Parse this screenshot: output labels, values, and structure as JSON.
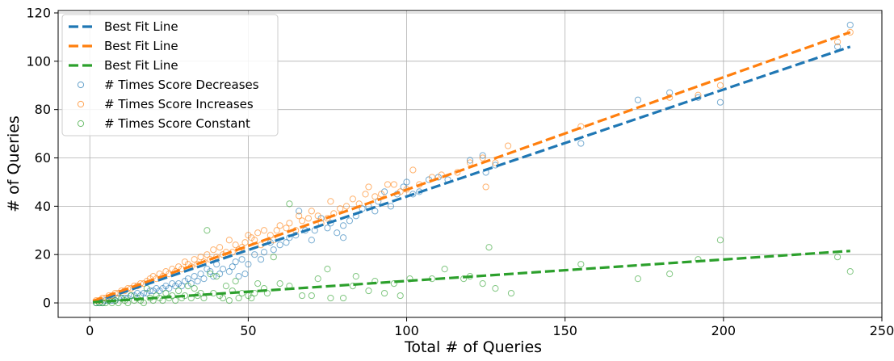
{
  "chart_data": {
    "type": "scatter",
    "title": "",
    "xlabel": "Total # of Queries",
    "ylabel": "# of Queries",
    "xlim": [
      -10,
      250
    ],
    "ylim": [
      -6,
      121
    ],
    "xticks": [
      0,
      50,
      100,
      150,
      200,
      250
    ],
    "yticks": [
      0,
      20,
      40,
      60,
      80,
      100,
      120
    ],
    "grid": true,
    "legend": {
      "location": "top-left",
      "entries": [
        {
          "label": "Best Fit Line",
          "kind": "line",
          "color": "#1f77b4"
        },
        {
          "label": "Best Fit Line",
          "kind": "line",
          "color": "#ff7f0e"
        },
        {
          "label": "Best Fit Line",
          "kind": "line",
          "color": "#2ca02c"
        },
        {
          "label": "# Times Score Decreases",
          "kind": "marker",
          "color": "#1f77b4"
        },
        {
          "label": "# Times Score Increases",
          "kind": "marker",
          "color": "#ff7f0e"
        },
        {
          "label": "# Times Score Constant",
          "kind": "marker",
          "color": "#2ca02c"
        }
      ]
    },
    "fit_lines": [
      {
        "name": "Best Fit Line (Decreases)",
        "color": "#1f77b4",
        "x": [
          1,
          240
        ],
        "y": [
          0.2,
          106
        ]
      },
      {
        "name": "Best Fit Line (Increases)",
        "color": "#ff7f0e",
        "x": [
          1,
          240
        ],
        "y": [
          0.8,
          112
        ]
      },
      {
        "name": "Best Fit Line (Constant)",
        "color": "#2ca02c",
        "x": [
          1,
          240
        ],
        "y": [
          0.3,
          21.5
        ]
      }
    ],
    "series": [
      {
        "name": "# Times Score Decreases",
        "color": "#1f77b4",
        "points": [
          [
            240,
            115
          ],
          [
            236,
            106
          ],
          [
            199,
            83
          ],
          [
            192,
            85
          ],
          [
            183,
            87
          ],
          [
            173,
            84
          ],
          [
            155,
            66
          ],
          [
            128,
            57
          ],
          [
            125,
            54
          ],
          [
            124,
            61
          ],
          [
            120,
            59
          ],
          [
            113,
            51
          ],
          [
            110,
            52
          ],
          [
            107,
            51
          ],
          [
            104,
            46
          ],
          [
            102,
            45
          ],
          [
            100,
            50
          ],
          [
            99,
            48
          ],
          [
            97,
            45
          ],
          [
            95,
            40
          ],
          [
            93,
            46
          ],
          [
            91,
            42
          ],
          [
            90,
            38
          ],
          [
            88,
            40
          ],
          [
            86,
            39
          ],
          [
            84,
            36
          ],
          [
            82,
            34
          ],
          [
            80,
            32
          ],
          [
            80,
            27
          ],
          [
            78,
            29
          ],
          [
            76,
            33
          ],
          [
            75,
            31
          ],
          [
            73,
            35
          ],
          [
            71,
            30
          ],
          [
            70,
            26
          ],
          [
            68,
            30
          ],
          [
            66,
            38
          ],
          [
            65,
            28
          ],
          [
            63,
            27
          ],
          [
            62,
            25
          ],
          [
            60,
            24
          ],
          [
            58,
            22
          ],
          [
            57,
            25
          ],
          [
            55,
            21
          ],
          [
            54,
            18
          ],
          [
            52,
            20
          ],
          [
            50,
            16
          ],
          [
            49,
            12
          ],
          [
            48,
            18
          ],
          [
            47,
            11
          ],
          [
            46,
            17
          ],
          [
            45,
            15
          ],
          [
            44,
            13
          ],
          [
            42,
            14
          ],
          [
            41,
            12
          ],
          [
            40,
            16
          ],
          [
            39,
            11
          ],
          [
            38,
            13
          ],
          [
            37,
            14
          ],
          [
            36,
            10
          ],
          [
            35,
            12
          ],
          [
            34,
            9
          ],
          [
            33,
            11
          ],
          [
            32,
            8
          ],
          [
            31,
            10
          ],
          [
            30,
            9
          ],
          [
            29,
            7
          ],
          [
            28,
            8
          ],
          [
            27,
            7
          ],
          [
            26,
            8
          ],
          [
            25,
            6
          ],
          [
            24,
            7
          ],
          [
            23,
            6
          ],
          [
            22,
            5
          ],
          [
            21,
            6
          ],
          [
            20,
            5
          ],
          [
            19,
            5
          ],
          [
            18,
            4
          ],
          [
            17,
            4
          ],
          [
            16,
            3
          ],
          [
            15,
            4
          ],
          [
            14,
            3
          ],
          [
            13,
            3
          ],
          [
            12,
            2
          ],
          [
            11,
            2
          ],
          [
            10,
            2
          ],
          [
            9,
            2
          ],
          [
            8,
            1
          ],
          [
            7,
            1
          ],
          [
            6,
            1
          ],
          [
            5,
            1
          ],
          [
            4,
            0
          ],
          [
            3,
            0
          ],
          [
            2,
            0
          ]
        ]
      },
      {
        "name": "# Times Score Increases",
        "color": "#ff7f0e",
        "points": [
          [
            240,
            112
          ],
          [
            236,
            108
          ],
          [
            199,
            90
          ],
          [
            192,
            86
          ],
          [
            183,
            85
          ],
          [
            155,
            73
          ],
          [
            132,
            65
          ],
          [
            128,
            58
          ],
          [
            125,
            48
          ],
          [
            124,
            60
          ],
          [
            120,
            58
          ],
          [
            116,
            54
          ],
          [
            111,
            53
          ],
          [
            108,
            52
          ],
          [
            104,
            49
          ],
          [
            102,
            55
          ],
          [
            100,
            47
          ],
          [
            98,
            46
          ],
          [
            96,
            49
          ],
          [
            94,
            49
          ],
          [
            92,
            45
          ],
          [
            90,
            44
          ],
          [
            88,
            48
          ],
          [
            87,
            45
          ],
          [
            85,
            41
          ],
          [
            83,
            43
          ],
          [
            81,
            40
          ],
          [
            79,
            39
          ],
          [
            77,
            37
          ],
          [
            76,
            42
          ],
          [
            75,
            35
          ],
          [
            73,
            33
          ],
          [
            72,
            36
          ],
          [
            70,
            38
          ],
          [
            69,
            35
          ],
          [
            67,
            34
          ],
          [
            66,
            36
          ],
          [
            65,
            30
          ],
          [
            63,
            33
          ],
          [
            62,
            31
          ],
          [
            60,
            32
          ],
          [
            59,
            30
          ],
          [
            58,
            26
          ],
          [
            57,
            28
          ],
          [
            55,
            30
          ],
          [
            54,
            24
          ],
          [
            53,
            29
          ],
          [
            52,
            26
          ],
          [
            51,
            27
          ],
          [
            50,
            28
          ],
          [
            49,
            25
          ],
          [
            48,
            23
          ],
          [
            47,
            22
          ],
          [
            46,
            24
          ],
          [
            45,
            21
          ],
          [
            44,
            26
          ],
          [
            43,
            21
          ],
          [
            42,
            20
          ],
          [
            41,
            23
          ],
          [
            40,
            19
          ],
          [
            39,
            22
          ],
          [
            38,
            18
          ],
          [
            37,
            20
          ],
          [
            36,
            17
          ],
          [
            35,
            19
          ],
          [
            34,
            16
          ],
          [
            33,
            18
          ],
          [
            32,
            15
          ],
          [
            31,
            16
          ],
          [
            30,
            17
          ],
          [
            29,
            14
          ],
          [
            28,
            15
          ],
          [
            27,
            13
          ],
          [
            26,
            14
          ],
          [
            25,
            12
          ],
          [
            24,
            13
          ],
          [
            23,
            11
          ],
          [
            22,
            12
          ],
          [
            21,
            10
          ],
          [
            20,
            11
          ],
          [
            19,
            10
          ],
          [
            18,
            9
          ],
          [
            17,
            8
          ],
          [
            16,
            8
          ],
          [
            15,
            7
          ],
          [
            14,
            7
          ],
          [
            13,
            6
          ],
          [
            12,
            6
          ],
          [
            11,
            5
          ],
          [
            10,
            5
          ],
          [
            9,
            4
          ],
          [
            8,
            4
          ],
          [
            7,
            3
          ],
          [
            6,
            3
          ],
          [
            5,
            2
          ],
          [
            4,
            2
          ],
          [
            3,
            1
          ],
          [
            2,
            1
          ]
        ]
      },
      {
        "name": "# Times Score Constant",
        "color": "#2ca02c",
        "points": [
          [
            240,
            13
          ],
          [
            236,
            19
          ],
          [
            199,
            26
          ],
          [
            192,
            18
          ],
          [
            183,
            12
          ],
          [
            173,
            10
          ],
          [
            155,
            16
          ],
          [
            133,
            4
          ],
          [
            128,
            6
          ],
          [
            126,
            23
          ],
          [
            124,
            8
          ],
          [
            120,
            11
          ],
          [
            118,
            10
          ],
          [
            112,
            14
          ],
          [
            108,
            10
          ],
          [
            101,
            10
          ],
          [
            98,
            3
          ],
          [
            96,
            8
          ],
          [
            93,
            4
          ],
          [
            90,
            9
          ],
          [
            88,
            5
          ],
          [
            84,
            11
          ],
          [
            83,
            7
          ],
          [
            80,
            2
          ],
          [
            76,
            2
          ],
          [
            75,
            14
          ],
          [
            72,
            10
          ],
          [
            70,
            3
          ],
          [
            67,
            3
          ],
          [
            63,
            41
          ],
          [
            63,
            7
          ],
          [
            60,
            8
          ],
          [
            58,
            19
          ],
          [
            56,
            4
          ],
          [
            55,
            6
          ],
          [
            53,
            8
          ],
          [
            52,
            4
          ],
          [
            51,
            2
          ],
          [
            50,
            3
          ],
          [
            48,
            4
          ],
          [
            47,
            2
          ],
          [
            46,
            9
          ],
          [
            45,
            5
          ],
          [
            44,
            1
          ],
          [
            43,
            7
          ],
          [
            42,
            2
          ],
          [
            41,
            3
          ],
          [
            40,
            11
          ],
          [
            39,
            4
          ],
          [
            38,
            12
          ],
          [
            37,
            30
          ],
          [
            36,
            2
          ],
          [
            35,
            4
          ],
          [
            34,
            3
          ],
          [
            33,
            6
          ],
          [
            32,
            2
          ],
          [
            31,
            7
          ],
          [
            30,
            3
          ],
          [
            29,
            2
          ],
          [
            28,
            5
          ],
          [
            27,
            1
          ],
          [
            26,
            3
          ],
          [
            25,
            2
          ],
          [
            24,
            4
          ],
          [
            23,
            1
          ],
          [
            22,
            2
          ],
          [
            21,
            3
          ],
          [
            20,
            1
          ],
          [
            19,
            2
          ],
          [
            18,
            6
          ],
          [
            17,
            0
          ],
          [
            16,
            1
          ],
          [
            15,
            2
          ],
          [
            14,
            1
          ],
          [
            13,
            3
          ],
          [
            12,
            0
          ],
          [
            11,
            1
          ],
          [
            10,
            2
          ],
          [
            9,
            0
          ],
          [
            8,
            1
          ],
          [
            7,
            0
          ],
          [
            6,
            1
          ],
          [
            5,
            0
          ],
          [
            4,
            0
          ],
          [
            3,
            0
          ],
          [
            2,
            0
          ]
        ]
      }
    ]
  }
}
